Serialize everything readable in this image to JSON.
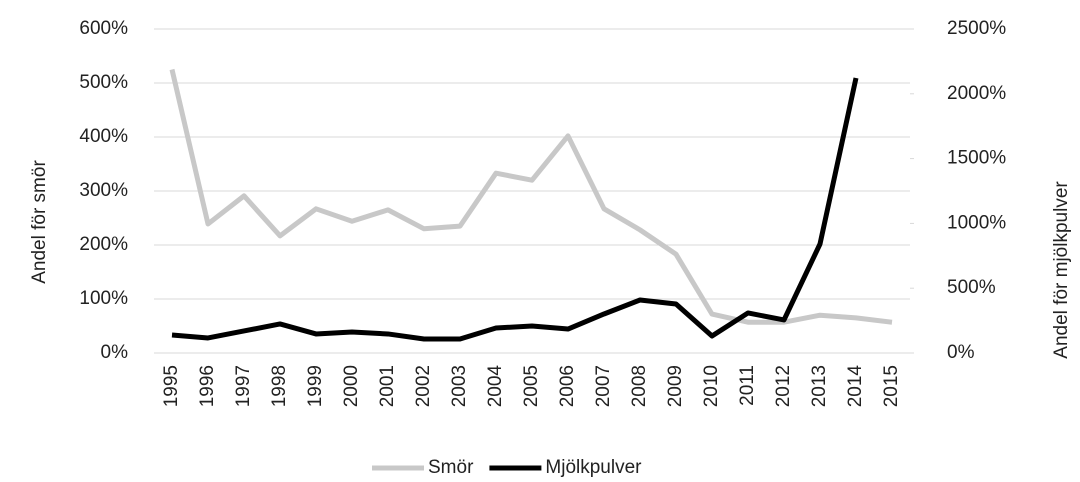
{
  "chart_data": {
    "type": "line",
    "categories": [
      "1995",
      "1996",
      "1997",
      "1998",
      "1999",
      "2000",
      "2001",
      "2002",
      "2003",
      "2004",
      "2005",
      "2006",
      "2007",
      "2008",
      "2009",
      "2010",
      "2011",
      "2012",
      "2013",
      "2014",
      "2015"
    ],
    "y_label": "Andel för smör",
    "y2_label": "Andel för mjölkpulver",
    "ylim": [
      0,
      600
    ],
    "yticks": [
      {
        "value": 0,
        "label": "0%"
      },
      {
        "value": 100,
        "label": "100%"
      },
      {
        "value": 200,
        "label": "200%"
      },
      {
        "value": 300,
        "label": "300%"
      },
      {
        "value": 400,
        "label": "400%"
      },
      {
        "value": 500,
        "label": "500%"
      },
      {
        "value": 600,
        "label": "600%"
      }
    ],
    "y2lim": [
      0,
      2500
    ],
    "y2ticks": [
      {
        "value": 0,
        "label": "0%"
      },
      {
        "value": 500,
        "label": "500%"
      },
      {
        "value": 1000,
        "label": "1000%"
      },
      {
        "value": 1500,
        "label": "1500%"
      },
      {
        "value": 2000,
        "label": "2000%"
      },
      {
        "value": 2500,
        "label": "2500%"
      }
    ],
    "grid": true,
    "legend": "bottom",
    "series": [
      {
        "name": "Smör",
        "color": "#c8c8c8",
        "values": [
          525,
          239,
          291,
          217,
          267,
          244,
          265,
          230,
          235,
          333,
          320,
          402,
          267,
          228,
          183,
          72,
          57,
          57,
          70,
          65,
          57
        ]
      },
      {
        "name": "Mjölkpulver",
        "color": "#000000",
        "axis": "y2",
        "values": [
          139,
          116,
          170,
          224,
          147,
          162,
          147,
          108,
          108,
          193,
          208,
          185,
          301,
          409,
          378,
          131,
          309,
          255,
          841,
          2122,
          null
        ]
      }
    ]
  }
}
